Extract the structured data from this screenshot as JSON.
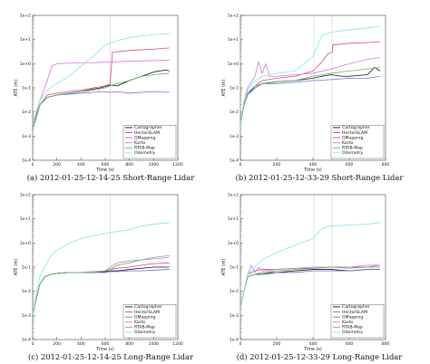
{
  "chart_data": [
    {
      "type": "line",
      "caption": "(a) 2012-01-25-12-14-25 Short-Range Lidar",
      "xlabel": "Time (s)",
      "ylabel": "ATE (m)",
      "xscale": "linear",
      "yscale": "log",
      "xlim": [
        0,
        1200
      ],
      "ylim": [
        0.0001,
        100
      ],
      "x_ticks": [
        0,
        200,
        400,
        600,
        800,
        1000,
        1200
      ],
      "y_ticks": [
        {
          "v": 0.0001,
          "label": "1e-4"
        },
        {
          "v": 0.001,
          "label": "1e-3"
        },
        {
          "v": 0.01,
          "label": "1e-2"
        },
        {
          "v": 0.1,
          "label": "1e-1"
        },
        {
          "v": 1,
          "label": "1e+0"
        },
        {
          "v": 10,
          "label": "1e+1"
        },
        {
          "v": 100,
          "label": "1e+2"
        }
      ],
      "vlines": [
        640
      ],
      "grid": false,
      "legend_position": "bottom-right",
      "series": [
        {
          "name": "Cartographer",
          "color": "#111111",
          "x": [
            0,
            30,
            60,
            120,
            200,
            300,
            400,
            500,
            560,
            640,
            700,
            800,
            900,
            1000,
            1100,
            1130
          ],
          "y": [
            0.002,
            0.006,
            0.02,
            0.04,
            0.05,
            0.06,
            0.07,
            0.09,
            0.1,
            0.13,
            0.12,
            0.2,
            0.3,
            0.45,
            0.55,
            0.5
          ]
        },
        {
          "name": "HectorSLAM",
          "color": "#e0457a",
          "x": [
            0,
            30,
            60,
            120,
            200,
            300,
            400,
            500,
            600,
            640,
            660,
            800,
            1000,
            1130
          ],
          "y": [
            0.002,
            0.008,
            0.02,
            0.05,
            0.06,
            0.07,
            0.08,
            0.1,
            0.12,
            0.15,
            3,
            3.5,
            4,
            4.5
          ]
        },
        {
          "name": "GMapping",
          "color": "#6f6fd8",
          "x": [
            0,
            30,
            60,
            120,
            200,
            300,
            400,
            500,
            600,
            640,
            700,
            800,
            900,
            1000,
            1130
          ],
          "y": [
            0.002,
            0.006,
            0.02,
            0.04,
            0.05,
            0.055,
            0.06,
            0.065,
            0.07,
            0.065,
            0.07,
            0.06,
            0.065,
            0.07,
            0.065
          ]
        },
        {
          "name": "Karto",
          "color": "#d673de",
          "x": [
            0,
            30,
            60,
            100,
            160,
            200,
            300,
            400,
            500,
            600,
            700,
            800,
            900,
            1000,
            1130
          ],
          "y": [
            0.002,
            0.01,
            0.03,
            0.1,
            0.8,
            1.0,
            1.05,
            1.1,
            1.1,
            1.15,
            1.2,
            1.3,
            1.3,
            1.35,
            1.4
          ]
        },
        {
          "name": "RTAB-Map",
          "color": "#5ab85a",
          "x": [
            0,
            30,
            60,
            120,
            200,
            300,
            400,
            500,
            600,
            640,
            700,
            800,
            900,
            1000,
            1130
          ],
          "y": [
            0.002,
            0.006,
            0.02,
            0.04,
            0.05,
            0.06,
            0.07,
            0.08,
            0.1,
            0.12,
            0.15,
            0.2,
            0.3,
            0.35,
            0.4
          ]
        },
        {
          "name": "Odometry",
          "color": "#80e8f0",
          "x": [
            0,
            30,
            60,
            120,
            200,
            300,
            400,
            500,
            600,
            700,
            800,
            900,
            1000,
            1130
          ],
          "y": [
            0.003,
            0.01,
            0.03,
            0.08,
            0.15,
            0.3,
            0.8,
            2,
            6,
            9,
            12,
            14,
            16,
            18
          ]
        }
      ]
    },
    {
      "type": "line",
      "caption": "(b) 2012-01-25-12-33-29 Short-Range Lidar",
      "xlabel": "Time (s)",
      "ylabel": "ATE (m)",
      "xscale": "linear",
      "yscale": "log",
      "xlim": [
        0,
        800
      ],
      "ylim": [
        0.0001,
        100
      ],
      "x_ticks": [
        0,
        200,
        400,
        600,
        800
      ],
      "y_ticks": [
        {
          "v": 0.0001,
          "label": "1e-4"
        },
        {
          "v": 0.001,
          "label": "1e-3"
        },
        {
          "v": 0.01,
          "label": "1e-2"
        },
        {
          "v": 0.1,
          "label": "1e-1"
        },
        {
          "v": 1,
          "label": "1e+0"
        },
        {
          "v": 10,
          "label": "1e+1"
        },
        {
          "v": 100,
          "label": "1e+2"
        }
      ],
      "vlines": [
        405,
        505
      ],
      "grid": false,
      "legend_position": "bottom-right",
      "series": [
        {
          "name": "Cartographer",
          "color": "#111111",
          "x": [
            0,
            20,
            40,
            80,
            120,
            200,
            300,
            400,
            450,
            500,
            560,
            600,
            700,
            740,
            770
          ],
          "y": [
            0.003,
            0.02,
            0.06,
            0.1,
            0.15,
            0.18,
            0.2,
            0.25,
            0.3,
            0.35,
            0.3,
            0.3,
            0.35,
            0.7,
            0.5
          ]
        },
        {
          "name": "HectorSLAM",
          "color": "#e0457a",
          "x": [
            0,
            20,
            40,
            80,
            120,
            200,
            300,
            400,
            450,
            480,
            505,
            510,
            600,
            700,
            770
          ],
          "y": [
            0.003,
            0.02,
            0.06,
            0.12,
            0.2,
            0.25,
            0.3,
            0.5,
            1.2,
            2.5,
            3,
            6,
            7,
            7.5,
            8
          ]
        },
        {
          "name": "GMapping",
          "color": "#6f6fd8",
          "x": [
            0,
            20,
            40,
            80,
            120,
            200,
            300,
            400,
            500,
            600,
            700,
            770
          ],
          "y": [
            0.003,
            0.02,
            0.05,
            0.1,
            0.15,
            0.15,
            0.17,
            0.2,
            0.22,
            0.25,
            0.25,
            0.3
          ]
        },
        {
          "name": "Karto",
          "color": "#d673de",
          "x": [
            0,
            20,
            40,
            80,
            100,
            120,
            140,
            160,
            200,
            300,
            400,
            500,
            600,
            700,
            770
          ],
          "y": [
            0.003,
            0.03,
            0.1,
            0.3,
            1.2,
            0.4,
            1.0,
            0.3,
            0.3,
            0.35,
            0.4,
            0.6,
            1.0,
            1.5,
            1.8
          ]
        },
        {
          "name": "RTAB-Map",
          "color": "#5ab85a",
          "x": [
            0,
            20,
            40,
            80,
            120,
            200,
            300,
            400,
            500,
            600,
            700,
            770
          ],
          "y": [
            0.003,
            0.02,
            0.06,
            0.12,
            0.15,
            0.18,
            0.2,
            0.3,
            0.4,
            0.5,
            0.6,
            0.7
          ]
        },
        {
          "name": "Odometry",
          "color": "#80e8f0",
          "x": [
            0,
            20,
            40,
            80,
            120,
            200,
            300,
            400,
            450,
            500,
            600,
            700,
            770
          ],
          "y": [
            0.003,
            0.03,
            0.08,
            0.2,
            0.3,
            0.4,
            0.5,
            2,
            15,
            20,
            25,
            30,
            35
          ]
        }
      ]
    },
    {
      "type": "line",
      "caption": "(c) 2012-01-25-12-14-25 Long-Range Lidar",
      "xlabel": "Time (s)",
      "ylabel": "ATE (m)",
      "xscale": "linear",
      "yscale": "log",
      "xlim": [
        0,
        1200
      ],
      "ylim": [
        0.0001,
        100
      ],
      "x_ticks": [
        0,
        200,
        400,
        600,
        800,
        1000,
        1200
      ],
      "y_ticks": [
        {
          "v": 0.0001,
          "label": "1e-4"
        },
        {
          "v": 0.001,
          "label": "1e-3"
        },
        {
          "v": 0.01,
          "label": "1e-2"
        },
        {
          "v": 0.1,
          "label": "1e-1"
        },
        {
          "v": 1,
          "label": "1e+0"
        },
        {
          "v": 10,
          "label": "1e+1"
        },
        {
          "v": 100,
          "label": "1e+2"
        }
      ],
      "vlines": [
        640
      ],
      "grid": false,
      "legend_position": "bottom-right",
      "series": [
        {
          "name": "Cartographer",
          "color": "#111111",
          "x": [
            0,
            30,
            60,
            100,
            150,
            200,
            300,
            400,
            500,
            600,
            640,
            700,
            800,
            900,
            1000,
            1130
          ],
          "y": [
            0.001,
            0.005,
            0.02,
            0.04,
            0.05,
            0.055,
            0.06,
            0.06,
            0.06,
            0.065,
            0.07,
            0.07,
            0.08,
            0.09,
            0.1,
            0.1
          ]
        },
        {
          "name": "HectorSLAM",
          "color": "#e0457a",
          "x": [
            0,
            30,
            60,
            100,
            150,
            200,
            300,
            400,
            500,
            600,
            640,
            700,
            800,
            900,
            1000,
            1130
          ],
          "y": [
            0.001,
            0.005,
            0.02,
            0.04,
            0.05,
            0.055,
            0.06,
            0.06,
            0.065,
            0.07,
            0.08,
            0.09,
            0.1,
            0.12,
            0.14,
            0.15
          ]
        },
        {
          "name": "GMapping",
          "color": "#6f6fd8",
          "x": [
            0,
            30,
            60,
            100,
            150,
            200,
            300,
            400,
            500,
            600,
            640,
            700,
            800,
            900,
            1000,
            1130
          ],
          "y": [
            0.001,
            0.005,
            0.02,
            0.04,
            0.05,
            0.055,
            0.06,
            0.06,
            0.06,
            0.06,
            0.065,
            0.065,
            0.07,
            0.07,
            0.075,
            0.08
          ]
        },
        {
          "name": "Karto",
          "color": "#d673de",
          "x": [
            0,
            30,
            60,
            100,
            150,
            200,
            300,
            400,
            500,
            600,
            640,
            700,
            800,
            900,
            1000,
            1130
          ],
          "y": [
            0.001,
            0.005,
            0.02,
            0.04,
            0.05,
            0.055,
            0.06,
            0.06,
            0.065,
            0.07,
            0.1,
            0.15,
            0.18,
            0.2,
            0.22,
            0.25
          ]
        },
        {
          "name": "RTAB-Map",
          "color": "#5ab85a",
          "x": [
            0,
            30,
            60,
            100,
            150,
            200,
            300,
            400,
            500,
            600,
            640,
            700,
            800,
            900,
            1000,
            1130
          ],
          "y": [
            0.001,
            0.005,
            0.02,
            0.04,
            0.05,
            0.055,
            0.06,
            0.06,
            0.06,
            0.07,
            0.08,
            0.12,
            0.15,
            0.2,
            0.25,
            0.3
          ]
        },
        {
          "name": "Odometry",
          "color": "#80e8f0",
          "x": [
            0,
            30,
            60,
            100,
            150,
            200,
            300,
            400,
            500,
            600,
            700,
            800,
            900,
            1000,
            1130
          ],
          "y": [
            0.001,
            0.008,
            0.04,
            0.1,
            0.3,
            0.5,
            1.0,
            1.5,
            2,
            2.5,
            3,
            3.5,
            5,
            6,
            7
          ]
        }
      ]
    },
    {
      "type": "line",
      "caption": "(d) 2012-01-25-12-33-29 Long-Range Lidar",
      "xlabel": "Time (s)",
      "ylabel": "ATE (m)",
      "xscale": "linear",
      "yscale": "log",
      "xlim": [
        0,
        800
      ],
      "ylim": [
        0.0001,
        100
      ],
      "x_ticks": [
        0,
        200,
        400,
        600,
        800
      ],
      "y_ticks": [
        {
          "v": 0.0001,
          "label": "1e-4"
        },
        {
          "v": 0.001,
          "label": "1e-3"
        },
        {
          "v": 0.01,
          "label": "1e-2"
        },
        {
          "v": 0.1,
          "label": "1e-1"
        },
        {
          "v": 1,
          "label": "1e+0"
        },
        {
          "v": 10,
          "label": "1e+1"
        },
        {
          "v": 100,
          "label": "1e+2"
        }
      ],
      "vlines": [
        405,
        505
      ],
      "grid": false,
      "legend_position": "bottom-right",
      "series": [
        {
          "name": "Cartographer",
          "color": "#111111",
          "x": [
            0,
            20,
            40,
            80,
            120,
            200,
            300,
            400,
            500,
            600,
            700,
            770
          ],
          "y": [
            0.002,
            0.01,
            0.04,
            0.05,
            0.05,
            0.06,
            0.07,
            0.08,
            0.08,
            0.07,
            0.08,
            0.08
          ]
        },
        {
          "name": "HectorSLAM",
          "color": "#e0457a",
          "x": [
            0,
            20,
            40,
            80,
            120,
            200,
            300,
            400,
            500,
            600,
            700,
            770
          ],
          "y": [
            0.002,
            0.01,
            0.05,
            0.07,
            0.08,
            0.08,
            0.09,
            0.09,
            0.1,
            0.1,
            0.1,
            0.12
          ]
        },
        {
          "name": "GMapping",
          "color": "#6f6fd8",
          "x": [
            0,
            20,
            40,
            80,
            120,
            200,
            300,
            400,
            500,
            600,
            700,
            770
          ],
          "y": [
            0.002,
            0.01,
            0.04,
            0.05,
            0.06,
            0.06,
            0.06,
            0.07,
            0.07,
            0.07,
            0.08,
            0.08
          ]
        },
        {
          "name": "Karto",
          "color": "#d673de",
          "x": [
            0,
            20,
            40,
            60,
            80,
            100,
            120,
            200,
            300,
            400,
            500,
            600,
            700,
            770
          ],
          "y": [
            0.002,
            0.01,
            0.05,
            0.12,
            0.06,
            0.1,
            0.07,
            0.08,
            0.09,
            0.1,
            0.1,
            0.1,
            0.12,
            0.12
          ]
        },
        {
          "name": "RTAB-Map",
          "color": "#5ab85a",
          "x": [
            0,
            20,
            40,
            80,
            120,
            200,
            300,
            400,
            500,
            600,
            700,
            770
          ],
          "y": [
            0.002,
            0.01,
            0.04,
            0.05,
            0.06,
            0.07,
            0.08,
            0.09,
            0.1,
            0.09,
            0.1,
            0.1
          ]
        },
        {
          "name": "Odometry",
          "color": "#80e8f0",
          "x": [
            0,
            20,
            40,
            80,
            120,
            200,
            300,
            400,
            450,
            500,
            600,
            700,
            770
          ],
          "y": [
            0.002,
            0.01,
            0.05,
            0.1,
            0.2,
            0.4,
            0.8,
            1.5,
            4,
            5,
            5.5,
            6,
            7
          ]
        }
      ]
    }
  ]
}
